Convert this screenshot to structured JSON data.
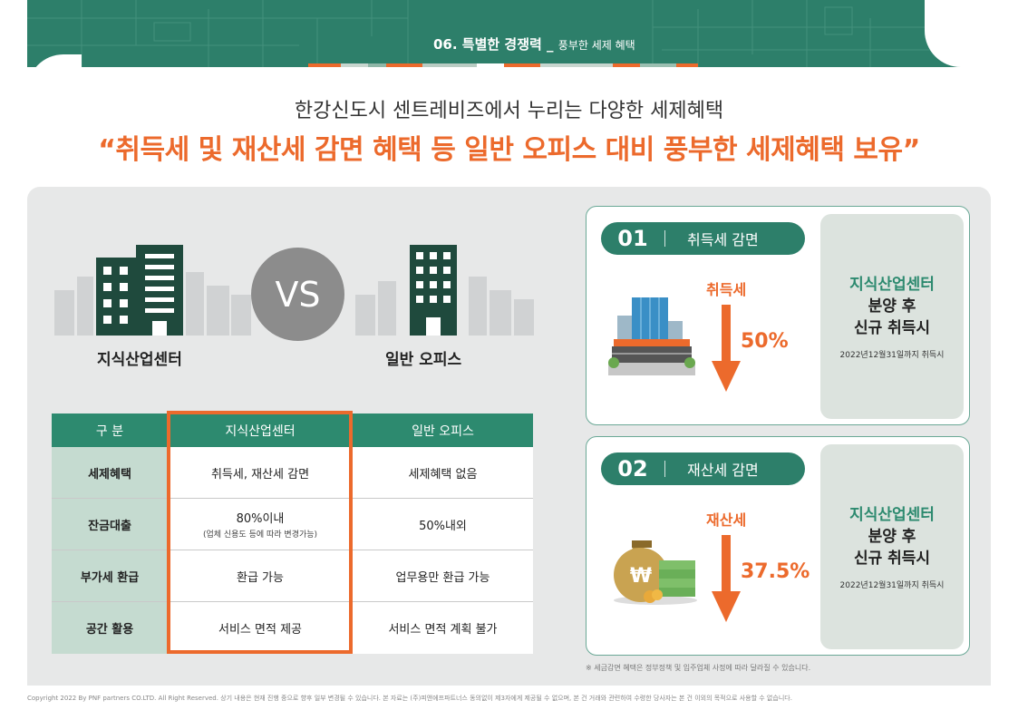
{
  "header": {
    "section": "06. 특별한 경쟁력 _",
    "section_sub": "풍부한 세제 혜택"
  },
  "headline": {
    "subtitle": "한강신도시 센트레비즈에서 누리는 다양한 세제혜택",
    "title": "“취득세 및 재산세 감면 혜택 등 일반 오피스 대비 풍부한 세제혜택 보유”"
  },
  "versus": {
    "left_label": "지식산업센터",
    "vs": "VS",
    "right_label": "일반 오피스"
  },
  "table": {
    "headers": [
      "구 분",
      "지식산업센터",
      "일반 오피스"
    ],
    "rows": [
      {
        "category": "세제혜택",
        "center": "취득세, 재산세 감면",
        "center_note": "",
        "office": "세제혜택 없음"
      },
      {
        "category": "잔금대출",
        "center": "80%이내",
        "center_note": "(업체 신용도 등에 따라 변경가능)",
        "office": "50%내외"
      },
      {
        "category": "부가세 환급",
        "center": "환급 가능",
        "center_note": "",
        "office": "업무용만 환급 가능"
      },
      {
        "category": "공간 활용",
        "center": "서비스 면적 제공",
        "center_note": "",
        "office": "서비스 면적 계획 불가"
      }
    ]
  },
  "cards": [
    {
      "num": "01",
      "label": "취득세 감면",
      "tax": "취득세",
      "pct": "50%",
      "side_line1": "지식산업센터",
      "side_line2": "분양 후",
      "side_line3": "신규 취득시",
      "side_date": "2022년12월31일까지 취득시"
    },
    {
      "num": "02",
      "label": "재산세 감면",
      "tax": "재산세",
      "pct": "37.5%",
      "side_line1": "지식산업센터",
      "side_line2": "분양 후",
      "side_line3": "신규 취득시",
      "side_date": "2022년12월31일까지 취득시"
    }
  ],
  "footnote": "※ 세금감면 혜택은 정부정책 및 입주업체 사정에 따라 달라질 수 있습니다.",
  "copyright": "Copyright 2022 By PNF partners CO.LTD. All Right Reserved. 상기 내용은 현재 진행 중으로 향후 일부 변경될 수 있습니다. 본 자료는 (주)피앤에프파트너스 동의없이 제3자에게 제공될 수 없으며, 본 건 거래와 관련하여 수령한 당사자는 본 건 이외의 목적으로 사용할 수 없습니다.",
  "colors": {
    "brand_green": "#2d7f6a",
    "accent_orange": "#ec6a2c",
    "panel_grey": "#e7e8e8",
    "row_label_green": "#c5dbd0"
  },
  "icons": [
    "office-building-icon",
    "office-tower-icon",
    "arrow-down-icon",
    "money-bag-icon"
  ]
}
